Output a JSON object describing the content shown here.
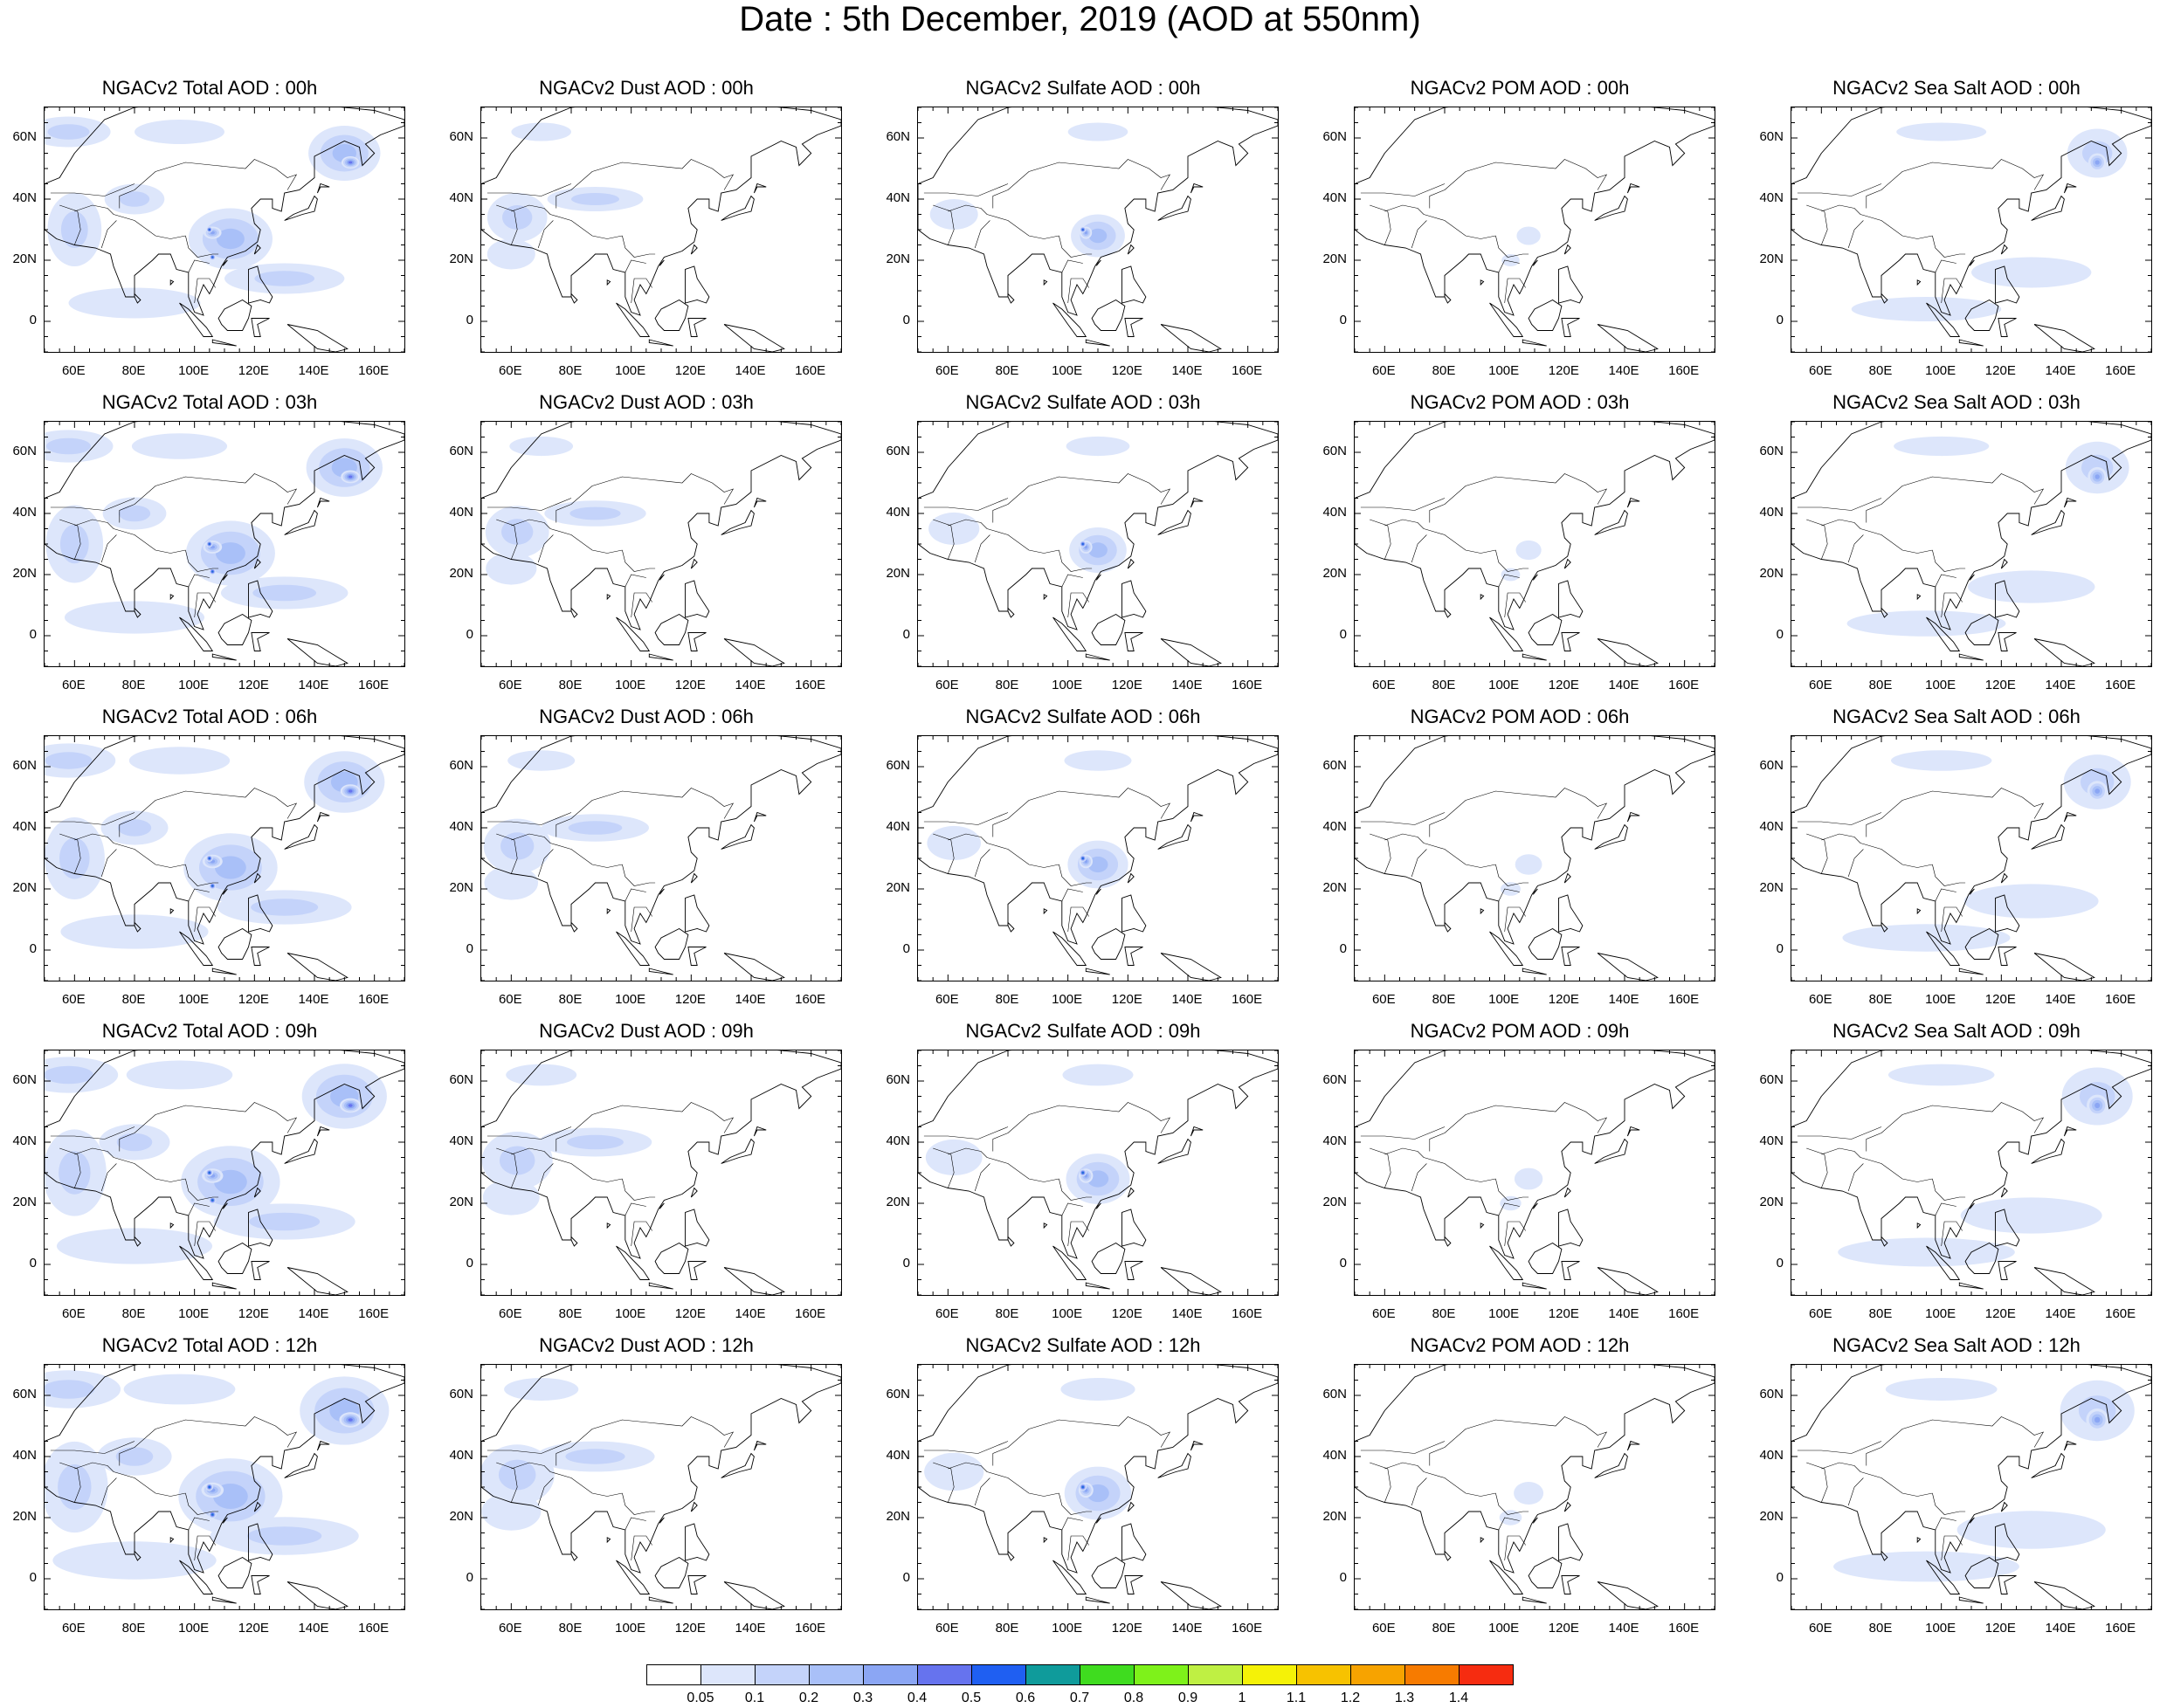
{
  "figure": {
    "title": "Date : 5th December, 2019 (AOD at 550nm)"
  },
  "axes": {
    "y_ticks": [
      "60N",
      "40N",
      "20N",
      "0"
    ],
    "x_ticks": [
      "60E",
      "80E",
      "100E",
      "120E",
      "140E",
      "160E"
    ],
    "lon_range": [
      50,
      170
    ],
    "lat_range": [
      -10,
      70
    ]
  },
  "panels": [
    {
      "title": "NGACv2 Total AOD : 00h",
      "species": "total",
      "hour": 0
    },
    {
      "title": "NGACv2 Dust AOD : 00h",
      "species": "dust",
      "hour": 0
    },
    {
      "title": "NGACv2 Sulfate AOD : 00h",
      "species": "sulfate",
      "hour": 0
    },
    {
      "title": "NGACv2 POM AOD : 00h",
      "species": "pom",
      "hour": 0
    },
    {
      "title": "NGACv2 Sea Salt AOD : 00h",
      "species": "seasalt",
      "hour": 0
    },
    {
      "title": "NGACv2 Total AOD : 03h",
      "species": "total",
      "hour": 3
    },
    {
      "title": "NGACv2 Dust AOD : 03h",
      "species": "dust",
      "hour": 3
    },
    {
      "title": "NGACv2 Sulfate AOD : 03h",
      "species": "sulfate",
      "hour": 3
    },
    {
      "title": "NGACv2 POM AOD : 03h",
      "species": "pom",
      "hour": 3
    },
    {
      "title": "NGACv2 Sea Salt AOD : 03h",
      "species": "seasalt",
      "hour": 3
    },
    {
      "title": "NGACv2 Total AOD : 06h",
      "species": "total",
      "hour": 6
    },
    {
      "title": "NGACv2 Dust AOD : 06h",
      "species": "dust",
      "hour": 6
    },
    {
      "title": "NGACv2 Sulfate AOD : 06h",
      "species": "sulfate",
      "hour": 6
    },
    {
      "title": "NGACv2 POM AOD : 06h",
      "species": "pom",
      "hour": 6
    },
    {
      "title": "NGACv2 Sea Salt AOD : 06h",
      "species": "seasalt",
      "hour": 6
    },
    {
      "title": "NGACv2 Total AOD : 09h",
      "species": "total",
      "hour": 9
    },
    {
      "title": "NGACv2 Dust AOD : 09h",
      "species": "dust",
      "hour": 9
    },
    {
      "title": "NGACv2 Sulfate AOD : 09h",
      "species": "sulfate",
      "hour": 9
    },
    {
      "title": "NGACv2 POM AOD : 09h",
      "species": "pom",
      "hour": 9
    },
    {
      "title": "NGACv2 Sea Salt  AOD : 09h",
      "species": "seasalt",
      "hour": 9
    },
    {
      "title": "NGACv2 Total AOD  : 12h",
      "species": "total",
      "hour": 12
    },
    {
      "title": "NGACv2 Dust AOD : 12h",
      "species": "dust",
      "hour": 12
    },
    {
      "title": "NGACv2 Sulfate AOD : 12h",
      "species": "sulfate",
      "hour": 12
    },
    {
      "title": "NGACv2 POM  AOD : 12h",
      "species": "pom",
      "hour": 12
    },
    {
      "title": "NGACv2 Sea Salt  AOD : 12h",
      "species": "seasalt",
      "hour": 12
    }
  ],
  "colorbar": {
    "labels": [
      "0.05",
      "0.1",
      "0.2",
      "0.3",
      "0.4",
      "0.5",
      "0.6",
      "0.7",
      "0.8",
      "0.9",
      "1",
      "1.1",
      "1.2",
      "1.3",
      "1.4"
    ],
    "colors": [
      "#ffffff",
      "#dde6fb",
      "#c4d3fa",
      "#a9c0f8",
      "#8ba6f4",
      "#6673ee",
      "#1f5ff2",
      "#0f9b9b",
      "#3fdc1f",
      "#7ef21a",
      "#bff043",
      "#f5f207",
      "#f7c200",
      "#f7a300",
      "#f77b00",
      "#f62c10"
    ]
  },
  "fields": {
    "total": [
      {
        "lon": 58,
        "lat": 62,
        "rx": 14,
        "ry": 5,
        "level": 2
      },
      {
        "lon": 95,
        "lat": 62,
        "rx": 15,
        "ry": 4,
        "level": 1
      },
      {
        "lon": 80,
        "lat": 40,
        "rx": 10,
        "ry": 5,
        "level": 2
      },
      {
        "lon": 60,
        "lat": 30,
        "rx": 9,
        "ry": 12,
        "level": 2
      },
      {
        "lon": 112,
        "lat": 27,
        "rx": 14,
        "ry": 10,
        "level": 3
      },
      {
        "lon": 106,
        "lat": 29,
        "rx": 3,
        "ry": 2,
        "level": 4
      },
      {
        "lon": 105,
        "lat": 30,
        "rx": 1,
        "ry": 1,
        "level": 7
      },
      {
        "lon": 106,
        "lat": 21,
        "rx": 1,
        "ry": 1,
        "level": 7
      },
      {
        "lon": 150,
        "lat": 55,
        "rx": 12,
        "ry": 9,
        "level": 3
      },
      {
        "lon": 152,
        "lat": 52,
        "rx": 3,
        "ry": 2,
        "level": 5
      },
      {
        "lon": 130,
        "lat": 14,
        "rx": 20,
        "ry": 5,
        "level": 2
      },
      {
        "lon": 80,
        "lat": 6,
        "rx": 22,
        "ry": 5,
        "level": 1
      }
    ],
    "dust": [
      {
        "lon": 62,
        "lat": 34,
        "rx": 10,
        "ry": 8,
        "level": 2
      },
      {
        "lon": 88,
        "lat": 40,
        "rx": 16,
        "ry": 4,
        "level": 2
      },
      {
        "lon": 60,
        "lat": 22,
        "rx": 8,
        "ry": 5,
        "level": 1
      },
      {
        "lon": 70,
        "lat": 62,
        "rx": 10,
        "ry": 3,
        "level": 1
      }
    ],
    "sulfate": [
      {
        "lon": 110,
        "lat": 28,
        "rx": 9,
        "ry": 7,
        "level": 3
      },
      {
        "lon": 106,
        "lat": 29,
        "rx": 2,
        "ry": 2,
        "level": 4
      },
      {
        "lon": 105,
        "lat": 30,
        "rx": 1,
        "ry": 1,
        "level": 7
      },
      {
        "lon": 62,
        "lat": 35,
        "rx": 8,
        "ry": 5,
        "level": 1
      },
      {
        "lon": 110,
        "lat": 62,
        "rx": 10,
        "ry": 3,
        "level": 1
      }
    ],
    "pom": [
      {
        "lon": 108,
        "lat": 28,
        "rx": 4,
        "ry": 3,
        "level": 1
      },
      {
        "lon": 102,
        "lat": 20,
        "rx": 3,
        "ry": 2,
        "level": 1
      }
    ],
    "seasalt": [
      {
        "lon": 152,
        "lat": 55,
        "rx": 10,
        "ry": 8,
        "level": 2
      },
      {
        "lon": 152,
        "lat": 52,
        "rx": 3,
        "ry": 3,
        "level": 4
      },
      {
        "lon": 130,
        "lat": 16,
        "rx": 20,
        "ry": 5,
        "level": 1
      },
      {
        "lon": 95,
        "lat": 4,
        "rx": 25,
        "ry": 4,
        "level": 1
      },
      {
        "lon": 100,
        "lat": 62,
        "rx": 15,
        "ry": 3,
        "level": 1
      }
    ]
  }
}
